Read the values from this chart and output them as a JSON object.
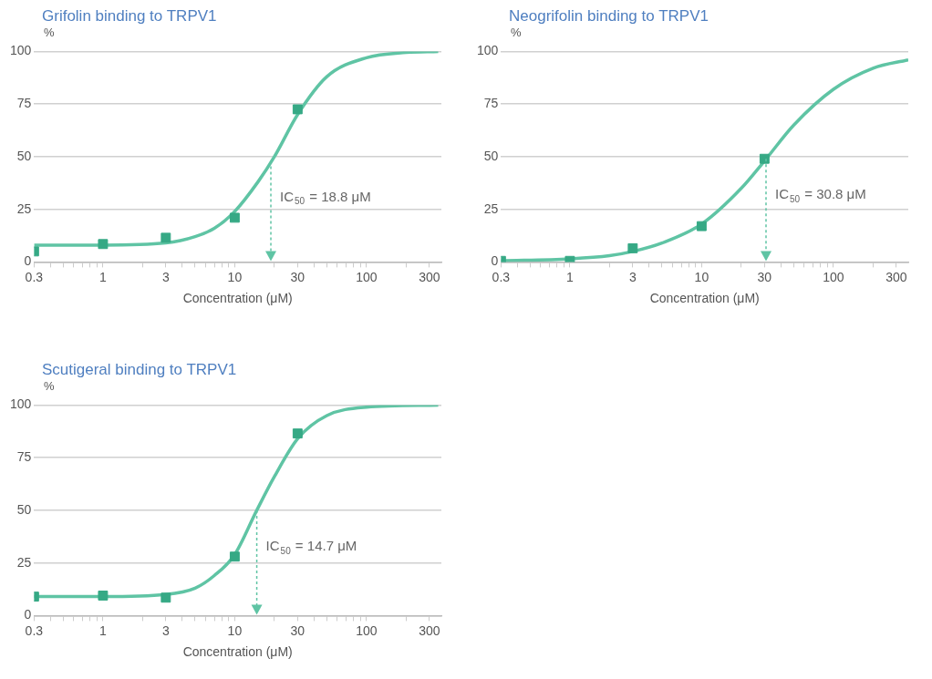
{
  "chart_data": [
    {
      "type": "scatter",
      "title": "Grifolin binding to TRPV1",
      "ylabel": "%",
      "xlabel": "Concentration (μM)",
      "log": "x",
      "grid": "y",
      "legend": false,
      "xlim": [
        0.3,
        370
      ],
      "ylim": [
        0,
        100
      ],
      "xticks": [
        0.3,
        {
          "value": 0.4,
          "label": null
        },
        {
          "value": 0.5,
          "label": null
        },
        {
          "value": 0.6,
          "label": null
        },
        {
          "value": 0.7,
          "label": null
        },
        {
          "value": 0.8,
          "label": null
        },
        {
          "value": 0.9,
          "label": null
        },
        1,
        {
          "value": 2,
          "label": null
        },
        3,
        {
          "value": 4,
          "label": null
        },
        {
          "value": 5,
          "label": null
        },
        {
          "value": 6,
          "label": null
        },
        {
          "value": 7,
          "label": null
        },
        {
          "value": 8,
          "label": null
        },
        {
          "value": 9,
          "label": null
        },
        10,
        {
          "value": 20,
          "label": null
        },
        30,
        {
          "value": 40,
          "label": null
        },
        {
          "value": 50,
          "label": null
        },
        {
          "value": 60,
          "label": null
        },
        {
          "value": 70,
          "label": null
        },
        {
          "value": 80,
          "label": null
        },
        {
          "value": 90,
          "label": null
        },
        100,
        {
          "value": 200,
          "label": null
        },
        300
      ],
      "yticks": [
        0,
        25,
        50,
        75,
        100
      ],
      "annotations": [
        {
          "text": "IC$_{50}$ = 18.8 μM",
          "x": 18.8,
          "y": 48
        }
      ],
      "series": [
        {
          "type": "line",
          "color": "#5fc4a4",
          "marker": "none",
          "x": [
            0.3,
            1,
            3,
            5,
            7,
            10,
            15,
            20,
            30,
            50,
            100,
            200,
            350
          ],
          "values": [
            8,
            8,
            9,
            12,
            16,
            24,
            38,
            50,
            70,
            88,
            97,
            99.5,
            100
          ]
        },
        {
          "type": "scatter",
          "color": "#36a985",
          "marker": "square",
          "x": [
            0.3,
            1,
            3,
            10,
            30
          ],
          "values": [
            5,
            8.5,
            11.5,
            21,
            72.5
          ]
        }
      ]
    },
    {
      "type": "scatter",
      "title": "Neogrifolin binding to TRPV1",
      "ylabel": "%",
      "xlabel": "Concentration (μM)",
      "log": "x",
      "grid": "y",
      "legend": false,
      "xlim": [
        0.3,
        370
      ],
      "ylim": [
        0,
        100
      ],
      "xticks": [
        0.3,
        {
          "value": 0.4,
          "label": null
        },
        {
          "value": 0.5,
          "label": null
        },
        {
          "value": 0.6,
          "label": null
        },
        {
          "value": 0.7,
          "label": null
        },
        {
          "value": 0.8,
          "label": null
        },
        {
          "value": 0.9,
          "label": null
        },
        1,
        {
          "value": 2,
          "label": null
        },
        3,
        {
          "value": 4,
          "label": null
        },
        {
          "value": 5,
          "label": null
        },
        {
          "value": 6,
          "label": null
        },
        {
          "value": 7,
          "label": null
        },
        {
          "value": 8,
          "label": null
        },
        {
          "value": 9,
          "label": null
        },
        10,
        {
          "value": 20,
          "label": null
        },
        30,
        {
          "value": 40,
          "label": null
        },
        {
          "value": 50,
          "label": null
        },
        {
          "value": 60,
          "label": null
        },
        {
          "value": 70,
          "label": null
        },
        {
          "value": 80,
          "label": null
        },
        {
          "value": 90,
          "label": null
        },
        100,
        {
          "value": 200,
          "label": null
        },
        300
      ],
      "yticks": [
        0,
        25,
        50,
        75,
        100
      ],
      "annotations": [
        {
          "text": "IC$_{50}$ = 30.8 μM",
          "x": 30.8,
          "y": 49
        }
      ],
      "series": [
        {
          "type": "line",
          "color": "#5fc4a4",
          "marker": "none",
          "x": [
            0.3,
            1,
            2,
            3,
            5,
            10,
            20,
            30,
            50,
            100,
            200,
            370
          ],
          "values": [
            0.5,
            1.5,
            3,
            5,
            9,
            18,
            35,
            48,
            65,
            82,
            92,
            96
          ]
        },
        {
          "type": "scatter",
          "color": "#36a985",
          "marker": "square",
          "x": [
            0.3,
            1,
            3,
            10,
            30
          ],
          "values": [
            0.5,
            0.5,
            6.5,
            17,
            49
          ]
        }
      ]
    },
    {
      "type": "scatter",
      "title": "Scutigeral binding to TRPV1",
      "ylabel": "%",
      "xlabel": "Concentration (μM)",
      "log": "x",
      "grid": "y",
      "legend": false,
      "xlim": [
        0.3,
        370
      ],
      "ylim": [
        0,
        100
      ],
      "xticks": [
        0.3,
        {
          "value": 0.4,
          "label": null
        },
        {
          "value": 0.5,
          "label": null
        },
        {
          "value": 0.6,
          "label": null
        },
        {
          "value": 0.7,
          "label": null
        },
        {
          "value": 0.8,
          "label": null
        },
        {
          "value": 0.9,
          "label": null
        },
        1,
        {
          "value": 2,
          "label": null
        },
        3,
        {
          "value": 4,
          "label": null
        },
        {
          "value": 5,
          "label": null
        },
        {
          "value": 6,
          "label": null
        },
        {
          "value": 7,
          "label": null
        },
        {
          "value": 8,
          "label": null
        },
        {
          "value": 9,
          "label": null
        },
        10,
        {
          "value": 20,
          "label": null
        },
        30,
        {
          "value": 40,
          "label": null
        },
        {
          "value": 50,
          "label": null
        },
        {
          "value": 60,
          "label": null
        },
        {
          "value": 70,
          "label": null
        },
        {
          "value": 80,
          "label": null
        },
        {
          "value": 90,
          "label": null
        },
        100,
        {
          "value": 200,
          "label": null
        },
        300
      ],
      "yticks": [
        0,
        25,
        50,
        75,
        100
      ],
      "annotations": [
        {
          "text": "IC$_{50}$ = 14.7 μM",
          "x": 14.7,
          "y": 50
        }
      ],
      "series": [
        {
          "type": "line",
          "color": "#5fc4a4",
          "marker": "none",
          "x": [
            0.3,
            1,
            3,
            5,
            7,
            10,
            14.7,
            20,
            30,
            50,
            100,
            350
          ],
          "values": [
            9,
            9,
            10,
            13,
            19,
            29,
            50,
            66,
            84,
            95,
            99,
            100
          ]
        },
        {
          "type": "scatter",
          "color": "#36a985",
          "marker": "square",
          "x": [
            0.3,
            1,
            3,
            10,
            30
          ],
          "values": [
            9,
            9.5,
            8.5,
            28,
            86.5
          ]
        }
      ]
    }
  ]
}
